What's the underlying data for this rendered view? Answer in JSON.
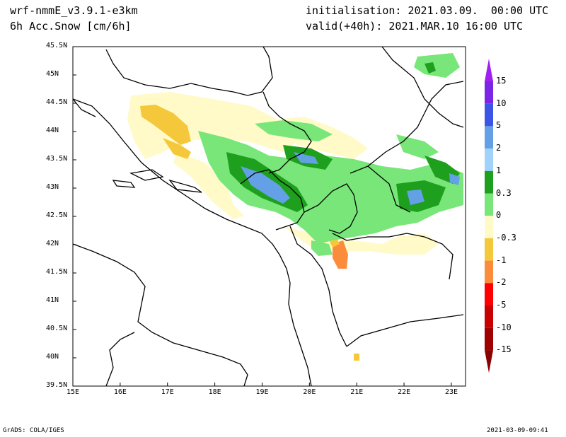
{
  "header": {
    "model": "wrf-nmmE_v3.9.1-e3km",
    "field": "6h Acc.Snow [cm/6h]",
    "init_label": "initialisation: 2021.03.09.  00:00 UTC",
    "valid_label": "valid(+40h): 2021.MAR.10 16:00 UTC"
  },
  "map": {
    "lon_range": [
      15,
      23.3
    ],
    "lat_range": [
      39.5,
      45.5
    ],
    "lon_ticks": [
      "15E",
      "16E",
      "17E",
      "18E",
      "19E",
      "20E",
      "21E",
      "22E",
      "23E"
    ],
    "lat_ticks": [
      "39.5N",
      "40N",
      "40.5N",
      "41N",
      "41.5N",
      "42N",
      "42.5N",
      "43N",
      "43.5N",
      "44N",
      "44.5N",
      "45N",
      "45.5N"
    ]
  },
  "colorbar": {
    "labels": [
      "15",
      "10",
      "5",
      "2",
      "1",
      "0.3",
      "0",
      "-0.3",
      "-1",
      "-2",
      "-5",
      "-10",
      "-15"
    ],
    "colors": [
      "#7d25e6",
      "#3c55e6",
      "#64a0e6",
      "#a0d2fa",
      "#1ea01e",
      "#78e678",
      "#ffffff",
      "#fffac8",
      "#f5c83c",
      "#fa8c3c",
      "#ff0000",
      "#c80000",
      "#a00000"
    ],
    "top_color": "#a020f0",
    "bottom_color": "#8b0000"
  },
  "footer": {
    "left": "GrADS: COLA/IGES",
    "right": "2021-03-09-09:41"
  }
}
